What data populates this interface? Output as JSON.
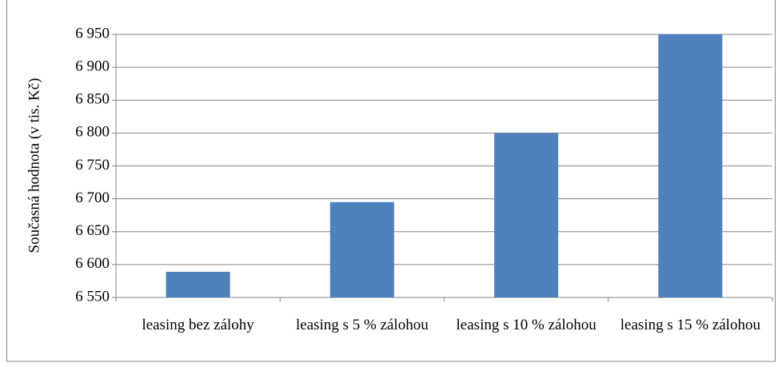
{
  "chart_data": {
    "type": "bar",
    "y_label": "Současná hodnota (v tis. Kč)",
    "categories": [
      "leasing bez zálohy",
      "leasing s 5 % zálohou",
      "leasing s 10 % zálohou",
      "leasing s 15 % zálohou"
    ],
    "values": [
      6589,
      6695,
      6800,
      6950
    ],
    "color": "#4f81bd",
    "ylim": [
      6550,
      6950
    ],
    "yticks": [
      {
        "value": 6550,
        "label": "6 550"
      },
      {
        "value": 6600,
        "label": "6 600"
      },
      {
        "value": 6650,
        "label": "6 650"
      },
      {
        "value": 6700,
        "label": "6 700"
      },
      {
        "value": 6750,
        "label": "6 750"
      },
      {
        "value": 6800,
        "label": "6 800"
      },
      {
        "value": 6850,
        "label": "6 850"
      },
      {
        "value": 6900,
        "label": "6 900"
      },
      {
        "value": 6950,
        "label": "6 950"
      }
    ],
    "grid": true
  }
}
